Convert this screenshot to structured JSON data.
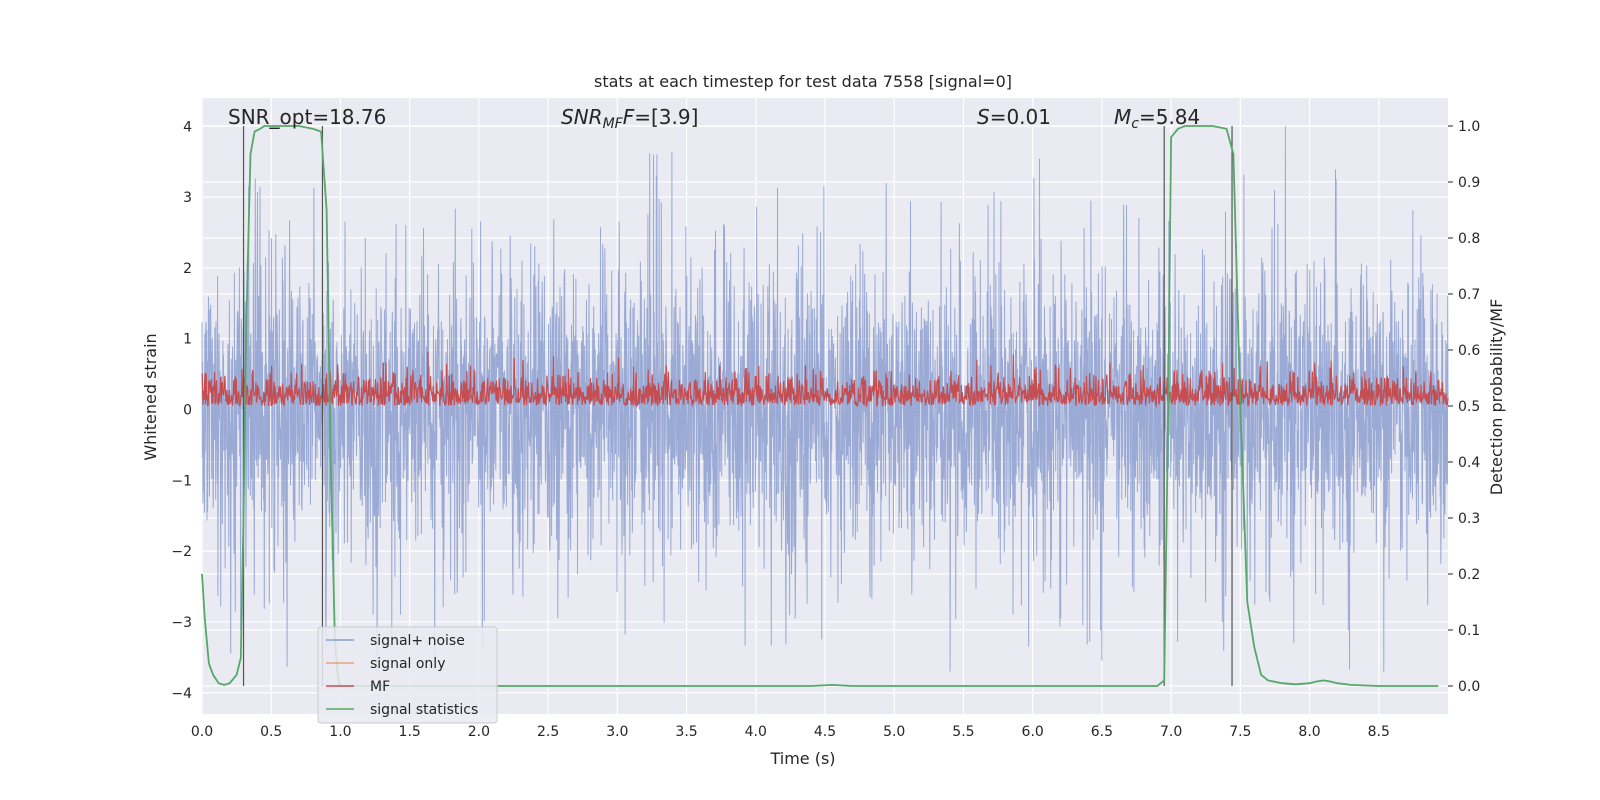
{
  "chart_data": {
    "type": "line",
    "title": "stats at each timestep for test data 7558 [signal=0]",
    "xlabel": "Time (s)",
    "ylabel": "Whitened strain",
    "ylabel_right": "Detection probability/MF",
    "xlim": [
      0.0,
      9.0
    ],
    "ylim": [
      -4.3,
      4.4
    ],
    "ylim_right": [
      -0.05,
      1.05
    ],
    "x_ticks": [
      "0.0",
      "0.5",
      "1.0",
      "1.5",
      "2.0",
      "2.5",
      "3.0",
      "3.5",
      "4.0",
      "4.5",
      "5.0",
      "5.5",
      "6.0",
      "6.5",
      "7.0",
      "7.5",
      "8.0",
      "8.5"
    ],
    "y_ticks": [
      "4",
      "3",
      "2",
      "1",
      "0",
      "−1",
      "−2",
      "−3",
      "−4"
    ],
    "y_ticks_right": [
      "1.0",
      "0.9",
      "0.8",
      "0.7",
      "0.6",
      "0.5",
      "0.4",
      "0.3",
      "0.2",
      "0.1",
      "0.0"
    ],
    "grid": true,
    "legend_position": "lower-left",
    "annotations": {
      "snr_opt": "SNR_opt=18.76",
      "snr_mf_main": "SNR",
      "snr_mf_sub": "MF",
      "snr_mf_value": "=[3.9]",
      "s_main": "S",
      "s_value": "=0.01",
      "mc_main": "M",
      "mc_sub": "c",
      "mc_value": "=5.84"
    },
    "series": [
      {
        "name": "signal+ noise",
        "color": "#8c9fd0",
        "axis": "left",
        "envelope": {
          "typical_amplitude": 1.6,
          "max_amplitude": 4.0,
          "min_amplitude": -3.7
        }
      },
      {
        "name": "signal only",
        "color": "#e8a582",
        "axis": "left",
        "values": []
      },
      {
        "name": "MF",
        "color": "#c44e52",
        "axis": "right",
        "range": [
          0.5,
          0.62
        ]
      },
      {
        "name": "signal statistics",
        "color": "#55a868",
        "axis": "right",
        "x": [
          0.0,
          0.02,
          0.05,
          0.08,
          0.12,
          0.16,
          0.2,
          0.25,
          0.28,
          0.3,
          0.32,
          0.35,
          0.38,
          0.42,
          0.45,
          0.5,
          0.6,
          0.7,
          0.8,
          0.86,
          0.9,
          0.93,
          0.96,
          0.98,
          1.0,
          1.5,
          2.0,
          3.0,
          4.0,
          4.4,
          4.55,
          4.7,
          5.0,
          6.0,
          6.9,
          6.95,
          6.98,
          7.0,
          7.05,
          7.1,
          7.2,
          7.3,
          7.4,
          7.45,
          7.5,
          7.55,
          7.6,
          7.65,
          7.7,
          7.8,
          7.9,
          8.0,
          8.05,
          8.1,
          8.15,
          8.2,
          8.3,
          8.5,
          8.7,
          8.93
        ],
        "y": [
          0.2,
          0.12,
          0.04,
          0.02,
          0.005,
          0.002,
          0.005,
          0.02,
          0.05,
          0.3,
          0.65,
          0.95,
          0.99,
          0.995,
          1.0,
          1.0,
          1.0,
          1.0,
          0.995,
          0.99,
          0.85,
          0.4,
          0.08,
          0.02,
          0.0,
          0.0,
          0.0,
          0.0,
          0.0,
          0.0,
          0.002,
          0.0,
          0.0,
          0.0,
          0.0,
          0.01,
          0.5,
          0.98,
          0.995,
          1.0,
          1.0,
          1.0,
          0.995,
          0.95,
          0.5,
          0.15,
          0.07,
          0.02,
          0.01,
          0.005,
          0.003,
          0.005,
          0.008,
          0.01,
          0.008,
          0.005,
          0.002,
          0.0,
          0.0,
          0.0
        ]
      }
    ],
    "vertical_markers": [
      0.3,
      0.87,
      6.95,
      7.44
    ]
  }
}
